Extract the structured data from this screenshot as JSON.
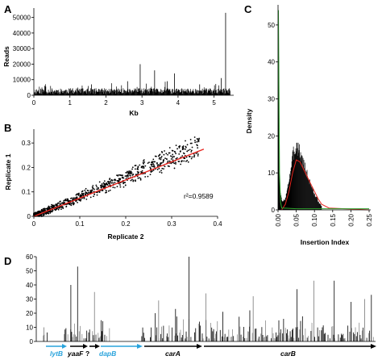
{
  "figure": {
    "panels": [
      "A",
      "B",
      "C",
      "D"
    ]
  },
  "colors": {
    "bars": "#000000",
    "fit_line": "#e8261f",
    "green_curve": "#2fa12f",
    "gene_blue": "#29a3dc",
    "gene_black": "#000000"
  },
  "chart_data": [
    {
      "panel": "A",
      "type": "bar",
      "title": "",
      "xlabel": "Kb",
      "ylabel": "Reads",
      "xlim": [
        0,
        5.5
      ],
      "ylim": [
        0,
        55000
      ],
      "xticks": [
        "0",
        "1",
        "2",
        "3",
        "4",
        "5"
      ],
      "yticks": [
        "0",
        "10000",
        "20000",
        "30000",
        "40000",
        "50000"
      ],
      "grid": false,
      "peaks": {
        "x": [
          0.3,
          1.6,
          2.6,
          2.95,
          3.35,
          3.7,
          3.9,
          4.6,
          5.2,
          5.32
        ],
        "y": [
          6000,
          7000,
          9000,
          20000,
          16000,
          9000,
          14000,
          7000,
          11000,
          53000
        ]
      },
      "baseline_reads": 3000
    },
    {
      "panel": "B",
      "type": "scatter",
      "title": "",
      "xlabel": "Replicate 2",
      "ylabel": "Replicate 1",
      "xlim": [
        0,
        0.4
      ],
      "ylim": [
        0,
        0.35
      ],
      "xticks": [
        "0",
        "0.1",
        "0.2",
        "0.3",
        "0.4"
      ],
      "yticks": [
        "0",
        "0.1",
        "0.2",
        "0.3"
      ],
      "fit_line": {
        "x": [
          0,
          0.37
        ],
        "y": [
          0,
          0.275
        ]
      },
      "annotation": "r²=0.9589",
      "grid": false
    },
    {
      "panel": "C",
      "type": "bar",
      "title": "",
      "xlabel": "Insertion Index",
      "ylabel": "Density",
      "xlim": [
        0,
        0.25
      ],
      "ylim": [
        0,
        55
      ],
      "xticks": [
        "0.00",
        "0.05",
        "0.10",
        "0.15",
        "0.20",
        "0.25"
      ],
      "yticks": [
        "0",
        "10",
        "20",
        "30",
        "40",
        "50"
      ],
      "histogram": {
        "bin_centers": [
          0.001,
          0.002,
          0.004,
          0.012,
          0.02,
          0.025,
          0.03,
          0.035,
          0.04,
          0.045,
          0.05,
          0.055,
          0.06,
          0.065,
          0.07,
          0.075,
          0.08,
          0.085,
          0.09,
          0.095,
          0.1,
          0.105,
          0.11,
          0.115,
          0.12
        ],
        "density": [
          51,
          35,
          6,
          2,
          3,
          5,
          8,
          11,
          14,
          16,
          17.5,
          17,
          15.5,
          14,
          12.5,
          11,
          9.5,
          8,
          7,
          5.5,
          4,
          3.5,
          2.5,
          1.5,
          1
        ]
      },
      "green_curve": {
        "x": [
          0.001,
          0.002,
          0.004,
          0.007,
          0.01,
          0.05,
          0.25
        ],
        "y": [
          54,
          40,
          10,
          2,
          0.5,
          0.3,
          0.3
        ]
      },
      "red_curve": {
        "x": [
          0.01,
          0.02,
          0.03,
          0.04,
          0.05,
          0.06,
          0.07,
          0.08,
          0.09,
          0.1,
          0.11,
          0.12,
          0.14,
          0.25
        ],
        "y": [
          0,
          1.5,
          5,
          10,
          13.5,
          13,
          11,
          9,
          7,
          5,
          3,
          1.5,
          0.5,
          0
        ]
      },
      "grid": false
    },
    {
      "panel": "D",
      "type": "bar",
      "title": "",
      "xlabel": "",
      "ylabel": "",
      "xlim": [
        0,
        1
      ],
      "ylim": [
        0,
        60
      ],
      "yticks": [
        "0",
        "10",
        "20",
        "30",
        "40",
        "50",
        "60"
      ],
      "tall_bars": {
        "x": [
          0.02,
          0.1,
          0.12,
          0.17,
          0.19,
          0.35,
          0.36,
          0.41,
          0.45,
          0.5,
          0.55,
          0.63,
          0.64,
          0.73,
          0.77,
          0.82,
          0.88,
          0.93,
          0.97,
          0.99
        ],
        "y": [
          10,
          40,
          53,
          35,
          15,
          20,
          29,
          23,
          60,
          34,
          21,
          22,
          32,
          16,
          37,
          43,
          43,
          28,
          30,
          33
        ]
      },
      "grid": false
    }
  ],
  "panel_d_genes": {
    "lytB": {
      "label": "lytB",
      "color": "blue"
    },
    "yaaF": {
      "label": "yaaF",
      "color": "black"
    },
    "unknown": {
      "label": "?",
      "color": "black"
    },
    "dapB": {
      "label": "dapB",
      "color": "blue"
    },
    "carA": {
      "label": "carA",
      "color": "black"
    },
    "carB": {
      "label": "carB",
      "color": "black"
    }
  }
}
